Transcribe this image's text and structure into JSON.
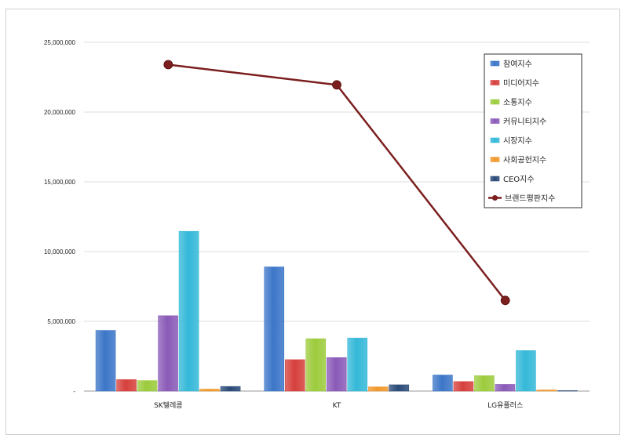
{
  "chart_data": {
    "type": "bar",
    "categories": [
      "SK텔레콤",
      "KT",
      "LG유플러스"
    ],
    "y_ticks": [
      "-",
      "5,000,000",
      "10,000,000",
      "15,000,000",
      "20,000,000",
      "25,000,000"
    ],
    "ylim": [
      0,
      25000000
    ],
    "grid": true,
    "legend_position": "top-right",
    "series": [
      {
        "name": "참여지수",
        "color": "#3c76c8",
        "values": [
          4350000,
          8900000,
          1150000
        ]
      },
      {
        "name": "미디어지수",
        "color": "#d6403c",
        "values": [
          820000,
          2250000,
          680000
        ]
      },
      {
        "name": "소통지수",
        "color": "#9ccb3c",
        "values": [
          750000,
          3750000,
          1100000
        ]
      },
      {
        "name": "커뮤니티지수",
        "color": "#8a5ab8",
        "values": [
          5400000,
          2400000,
          480000
        ]
      },
      {
        "name": "시장지수",
        "color": "#34b8d8",
        "values": [
          11450000,
          3800000,
          2900000
        ]
      },
      {
        "name": "사회공헌지수",
        "color": "#f0982c",
        "values": [
          140000,
          300000,
          80000
        ]
      },
      {
        "name": "CEO지수",
        "color": "#2a4a78",
        "values": [
          330000,
          450000,
          30000
        ]
      }
    ],
    "line_series": {
      "name": "브랜드평판지수",
      "color": "#7a1e1e",
      "values": [
        23400000,
        21950000,
        6500000
      ]
    }
  }
}
